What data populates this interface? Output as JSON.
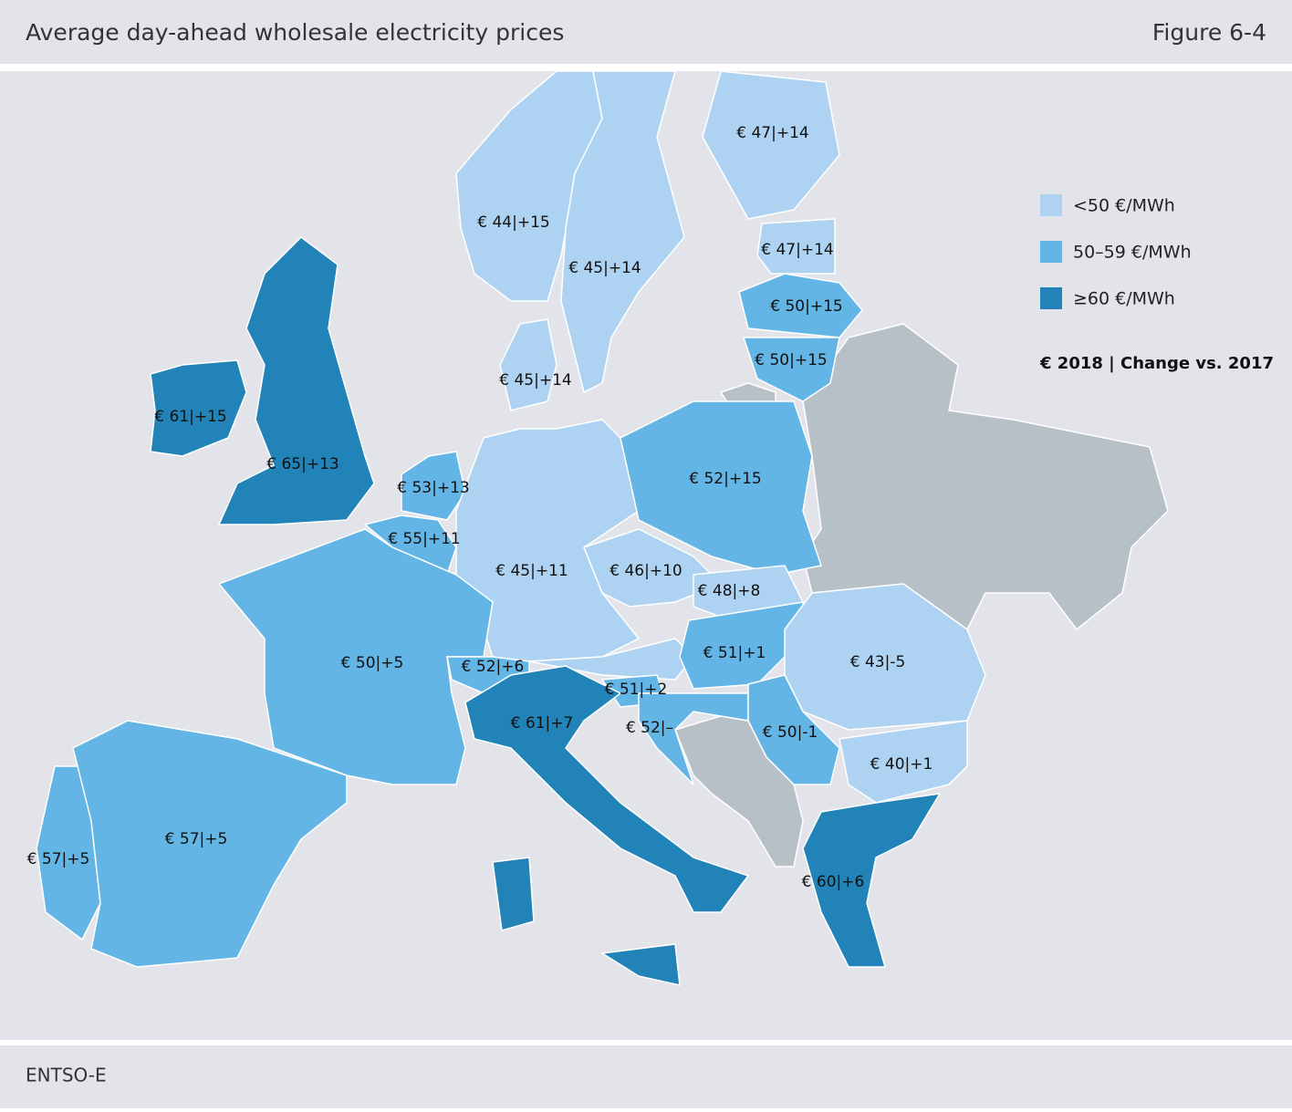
{
  "header": {
    "title": "Average day-ahead wholesale electricity prices",
    "figure": "Figure 6-4"
  },
  "legend": {
    "items": [
      {
        "label": "<50 €/MWh",
        "color": "#aed3f2"
      },
      {
        "label": "50–59 €/MWh",
        "color": "#63b5e5"
      },
      {
        "label": "≥60 €/MWh",
        "color": "#2183b8"
      }
    ],
    "note": "€ 2018 | Change vs. 2017"
  },
  "regions": [
    {
      "label": "€ 44|+15",
      "color": "#aed3f2"
    },
    {
      "label": "€ 45|+14",
      "color": "#aed3f2"
    },
    {
      "label": "€ 47|+14",
      "color": "#aed3f2"
    },
    {
      "label": "€ 47|+14",
      "color": "#aed3f2"
    },
    {
      "label": "€ 50|+15",
      "color": "#63b5e5"
    },
    {
      "label": "€ 50|+15",
      "color": "#63b5e5"
    },
    {
      "label": "€ 45|+14",
      "color": "#aed3f2"
    },
    {
      "label": "€ 61|+15",
      "color": "#2183b8"
    },
    {
      "label": "€ 65|+13",
      "color": "#2183b8"
    },
    {
      "label": "€ 53|+13",
      "color": "#63b5e5"
    },
    {
      "label": "€ 55|+11",
      "color": "#63b5e5"
    },
    {
      "label": "€ 45|+11",
      "color": "#aed3f2"
    },
    {
      "label": "€ 52|+15",
      "color": "#63b5e5"
    },
    {
      "label": "€ 46|+10",
      "color": "#aed3f2"
    },
    {
      "label": "€ 48|+8",
      "color": "#aed3f2"
    },
    {
      "label": "€ 51|+1",
      "color": "#63b5e5"
    },
    {
      "label": "€ 43|-5",
      "color": "#aed3f2"
    },
    {
      "label": "€ 50|+5",
      "color": "#63b5e5"
    },
    {
      "label": "€ 52|+6",
      "color": "#63b5e5"
    },
    {
      "label": "€ 51|+2",
      "color": "#63b5e5"
    },
    {
      "label": "€ 61|+7",
      "color": "#2183b8"
    },
    {
      "label": "€ 52|–",
      "color": "#63b5e5"
    },
    {
      "label": "€ 50|-1",
      "color": "#63b5e5"
    },
    {
      "label": "€ 40|+1",
      "color": "#aed3f2"
    },
    {
      "label": "€ 57|+5",
      "color": "#63b5e5"
    },
    {
      "label": "€ 57|+5",
      "color": "#63b5e5"
    },
    {
      "label": "€ 60|+6",
      "color": "#2183b8"
    }
  ],
  "footer": {
    "source": "ENTSO-E"
  }
}
